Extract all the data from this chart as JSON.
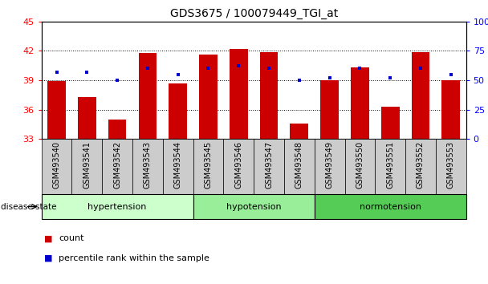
{
  "title": "GDS3675 / 100079449_TGI_at",
  "samples": [
    "GSM493540",
    "GSM493541",
    "GSM493542",
    "GSM493543",
    "GSM493544",
    "GSM493545",
    "GSM493546",
    "GSM493547",
    "GSM493548",
    "GSM493549",
    "GSM493550",
    "GSM493551",
    "GSM493552",
    "GSM493553"
  ],
  "count_values": [
    38.9,
    37.3,
    35.0,
    41.8,
    38.7,
    41.6,
    42.2,
    41.9,
    34.6,
    39.0,
    40.3,
    36.3,
    41.9,
    39.0
  ],
  "percentile_values": [
    57,
    57,
    50,
    60,
    55,
    60,
    62,
    60,
    50,
    52,
    60,
    52,
    60,
    55
  ],
  "ylim_left": [
    33,
    45
  ],
  "ylim_right": [
    0,
    100
  ],
  "yticks_left": [
    33,
    36,
    39,
    42,
    45
  ],
  "yticks_right": [
    0,
    25,
    50,
    75,
    100
  ],
  "bar_color": "#cc0000",
  "dot_color": "#0000cc",
  "group_defs": [
    {
      "label": "hypertension",
      "start": 0,
      "end": 4,
      "color": "#ccffcc"
    },
    {
      "label": "hypotension",
      "start": 5,
      "end": 8,
      "color": "#99ee99"
    },
    {
      "label": "normotension",
      "start": 9,
      "end": 13,
      "color": "#55cc55"
    }
  ],
  "disease_label": "disease state",
  "legend_count": "count",
  "legend_percentile": "percentile rank within the sample",
  "grid_color": "#000000",
  "background_color": "#ffffff",
  "tick_area_bg": "#cccccc",
  "bar_width": 0.6
}
